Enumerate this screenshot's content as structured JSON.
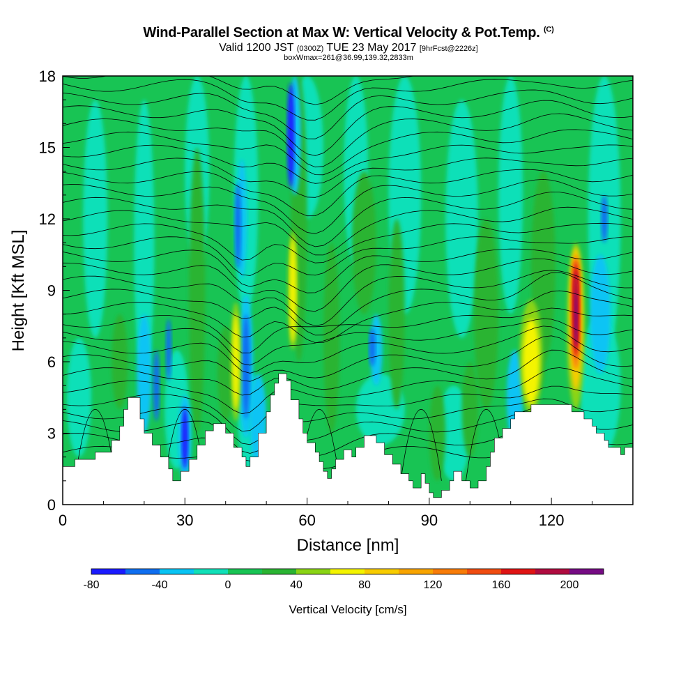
{
  "header": {
    "title_main": "Wind-Parallel Section at Max W: Vertical Velocity & Pot.Temp.",
    "title_mark": "(C)",
    "valid_prefix": "Valid 1200 JST",
    "valid_utc": "(0300Z)",
    "valid_date": "TUE 23 May 2017",
    "forecast": "[9hrFcst@2226z]",
    "box_info": "boxWmax=261@36.99,139.32,2833m"
  },
  "chart_data": {
    "type": "heatmap",
    "xlabel": "Distance [nm]",
    "ylabel": "Height [Kft MSL]",
    "xlim": [
      0,
      140
    ],
    "ylim": [
      0,
      18
    ],
    "x_ticks": [
      "0",
      "30",
      "60",
      "90",
      "120"
    ],
    "y_ticks": [
      "0",
      "3",
      "6",
      "9",
      "12",
      "15",
      "18"
    ],
    "colorbar": {
      "label": "Vertical Velocity [cm/s]",
      "levels": [
        -80,
        -60,
        -40,
        -20,
        0,
        20,
        40,
        60,
        80,
        100,
        120,
        140,
        160,
        180,
        200,
        220
      ],
      "tick_labels": [
        "-80",
        "-40",
        "0",
        "40",
        "80",
        "120",
        "160",
        "200"
      ],
      "colors": [
        "#1a1aff",
        "#0e6ef0",
        "#08c4f4",
        "#10e0b8",
        "#18c454",
        "#2ab432",
        "#8ad414",
        "#f4f400",
        "#f8cc00",
        "#f8a400",
        "#f87c08",
        "#f04c10",
        "#e01414",
        "#b00c40",
        "#760c84"
      ]
    },
    "terrain": [
      [
        0,
        1.6
      ],
      [
        3,
        1.6
      ],
      [
        3,
        1.9
      ],
      [
        8,
        1.9
      ],
      [
        8,
        2.2
      ],
      [
        12,
        2.2
      ],
      [
        12,
        2.7
      ],
      [
        14,
        2.7
      ],
      [
        14,
        3.3
      ],
      [
        15,
        3.3
      ],
      [
        15,
        4
      ],
      [
        16,
        4
      ],
      [
        16,
        4.5
      ],
      [
        19,
        4.5
      ],
      [
        19,
        3.6
      ],
      [
        20,
        3.6
      ],
      [
        20,
        3
      ],
      [
        22,
        3
      ],
      [
        22,
        2.5
      ],
      [
        24,
        2.5
      ],
      [
        24,
        2
      ],
      [
        26,
        2
      ],
      [
        26,
        1.5
      ],
      [
        27,
        1.5
      ],
      [
        27,
        1
      ],
      [
        29,
        1
      ],
      [
        29,
        1.4
      ],
      [
        31,
        1.4
      ],
      [
        31,
        1.9
      ],
      [
        33,
        1.9
      ],
      [
        33,
        2.5
      ],
      [
        35,
        2.5
      ],
      [
        35,
        3.1
      ],
      [
        37,
        3.1
      ],
      [
        37,
        3.4
      ],
      [
        40,
        3.4
      ],
      [
        40,
        3
      ],
      [
        42,
        3
      ],
      [
        42,
        2.4
      ],
      [
        44,
        2.4
      ],
      [
        44,
        2
      ],
      [
        45,
        2
      ],
      [
        45,
        1.6
      ],
      [
        46,
        1.6
      ],
      [
        46,
        2
      ],
      [
        48,
        2
      ],
      [
        48,
        3
      ],
      [
        50,
        3
      ],
      [
        50,
        3.9
      ],
      [
        51,
        3.9
      ],
      [
        51,
        4.6
      ],
      [
        52,
        4.6
      ],
      [
        52,
        5.1
      ],
      [
        53,
        5.1
      ],
      [
        53,
        5.5
      ],
      [
        55,
        5.5
      ],
      [
        55,
        5.2
      ],
      [
        56,
        5.2
      ],
      [
        56,
        4.4
      ],
      [
        58,
        4.4
      ],
      [
        58,
        3.6
      ],
      [
        59,
        3.6
      ],
      [
        59,
        3
      ],
      [
        60,
        3
      ],
      [
        60,
        2.6
      ],
      [
        62,
        2.6
      ],
      [
        62,
        2.2
      ],
      [
        63,
        2.2
      ],
      [
        63,
        1.8
      ],
      [
        64,
        1.8
      ],
      [
        64,
        1.4
      ],
      [
        65,
        1.4
      ],
      [
        65,
        1.1
      ],
      [
        66,
        1.1
      ],
      [
        66,
        1.5
      ],
      [
        67,
        1.5
      ],
      [
        67,
        1.9
      ],
      [
        69,
        1.9
      ],
      [
        69,
        2.3
      ],
      [
        71,
        2.3
      ],
      [
        71,
        2
      ],
      [
        72,
        2
      ],
      [
        72,
        2.4
      ],
      [
        74,
        2.4
      ],
      [
        74,
        2.9
      ],
      [
        77,
        2.9
      ],
      [
        77,
        2.6
      ],
      [
        79,
        2.6
      ],
      [
        79,
        2.1
      ],
      [
        81,
        2.1
      ],
      [
        81,
        1.7
      ],
      [
        83,
        1.7
      ],
      [
        83,
        1.3
      ],
      [
        85,
        1.3
      ],
      [
        85,
        1
      ],
      [
        86,
        1
      ],
      [
        86,
        0.7
      ],
      [
        88,
        0.7
      ],
      [
        88,
        1.3
      ],
      [
        89,
        1.3
      ],
      [
        89,
        0.9
      ],
      [
        90,
        0.9
      ],
      [
        90,
        0.5
      ],
      [
        91,
        0.5
      ],
      [
        91,
        0.3
      ],
      [
        93,
        0.3
      ],
      [
        93,
        0.6
      ],
      [
        95,
        0.6
      ],
      [
        95,
        1
      ],
      [
        96,
        1
      ],
      [
        96,
        1.4
      ],
      [
        98,
        1.4
      ],
      [
        98,
        1
      ],
      [
        100,
        1
      ],
      [
        100,
        0.7
      ],
      [
        102,
        0.7
      ],
      [
        102,
        1
      ],
      [
        104,
        1
      ],
      [
        104,
        1.6
      ],
      [
        105,
        1.6
      ],
      [
        105,
        2.2
      ],
      [
        106,
        2.2
      ],
      [
        106,
        2.8
      ],
      [
        108,
        2.8
      ],
      [
        108,
        3.2
      ],
      [
        110,
        3.2
      ],
      [
        110,
        3.6
      ],
      [
        111,
        3.6
      ],
      [
        111,
        3.9
      ],
      [
        115,
        3.9
      ],
      [
        115,
        4.2
      ],
      [
        125,
        4.2
      ],
      [
        125,
        3.9
      ],
      [
        128,
        3.9
      ],
      [
        128,
        3.6
      ],
      [
        130,
        3.6
      ],
      [
        130,
        3.3
      ],
      [
        131,
        3.3
      ],
      [
        131,
        3
      ],
      [
        133,
        3
      ],
      [
        133,
        2.7
      ],
      [
        134,
        2.7
      ],
      [
        134,
        2.4
      ],
      [
        137,
        2.4
      ],
      [
        137,
        2.1
      ],
      [
        138,
        2.1
      ],
      [
        138,
        2.4
      ],
      [
        140,
        2.4
      ]
    ]
  }
}
